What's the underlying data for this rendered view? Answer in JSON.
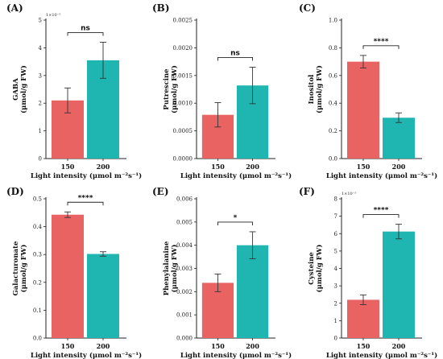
{
  "chart_data": [
    {
      "type": "bar",
      "panel": "(A)",
      "ylabel_top": "GABA",
      "ylabel_bottom": "(μmol/g FW)",
      "xlabel": "Light intensity (μmol m⁻²s⁻¹)",
      "categories": [
        "150",
        "200"
      ],
      "values": [
        2.1,
        3.55
      ],
      "errors": [
        0.45,
        0.65
      ],
      "ylim": [
        0,
        5
      ],
      "yticks": [
        "0",
        "1",
        "2",
        "3",
        "4",
        "5"
      ],
      "multiplier": "1×10⁻⁵",
      "significance": "ns"
    },
    {
      "type": "bar",
      "panel": "(B)",
      "ylabel_top": "Putrescine",
      "ylabel_bottom": "(μmol/g FW)",
      "xlabel": "Light intensity (μmol m⁻²s⁻¹)",
      "categories": [
        "150",
        "200"
      ],
      "values": [
        0.00079,
        0.00132
      ],
      "errors": [
        0.00022,
        0.00033
      ],
      "ylim": [
        0,
        0.0025
      ],
      "yticks": [
        "0.0000",
        "0.0005",
        "0.0010",
        "0.0015",
        "0.0020",
        "0.0025"
      ],
      "multiplier": "",
      "significance": "ns"
    },
    {
      "type": "bar",
      "panel": "(C)",
      "ylabel_top": "Inositol",
      "ylabel_bottom": "(μmol/g FW)",
      "xlabel": "Light intensity (μmol m⁻²s⁻¹)",
      "categories": [
        "150",
        "200"
      ],
      "values": [
        0.7,
        0.295
      ],
      "errors": [
        0.045,
        0.035
      ],
      "ylim": [
        0,
        1.0
      ],
      "yticks": [
        "0.0",
        "0.2",
        "0.4",
        "0.6",
        "0.8",
        "1.0"
      ],
      "multiplier": "",
      "significance": "****"
    },
    {
      "type": "bar",
      "panel": "(D)",
      "ylabel_top": "Galacturonate",
      "ylabel_bottom": "(μmol/g FW)",
      "xlabel": "Light intensity (μmol m⁻²s⁻¹)",
      "categories": [
        "150",
        "200"
      ],
      "values": [
        0.443,
        0.302
      ],
      "errors": [
        0.01,
        0.008
      ],
      "ylim": [
        0,
        0.5
      ],
      "yticks": [
        "0.0",
        "0.1",
        "0.2",
        "0.3",
        "0.4",
        "0.5"
      ],
      "multiplier": "",
      "significance": "****"
    },
    {
      "type": "bar",
      "panel": "(E)",
      "ylabel_top": "Phenylalanine",
      "ylabel_bottom": "(μmol/g FW)",
      "xlabel": "Light intensity (μmol m⁻²s⁻¹)",
      "categories": [
        "150",
        "200"
      ],
      "values": [
        0.00238,
        0.004
      ],
      "errors": [
        0.00038,
        0.00058
      ],
      "ylim": [
        0,
        0.006
      ],
      "yticks": [
        "0.000",
        "0.001",
        "0.002",
        "0.003",
        "0.004",
        "0.005",
        "0.006"
      ],
      "multiplier": "",
      "significance": "*"
    },
    {
      "type": "bar",
      "panel": "(F)",
      "ylabel_top": "Cysteine",
      "ylabel_bottom": "(μmol/g FW)",
      "xlabel": "Light intensity (μmol m⁻²s⁻¹)",
      "categories": [
        "150",
        "200"
      ],
      "values": [
        2.2,
        6.12
      ],
      "errors": [
        0.28,
        0.42
      ],
      "ylim": [
        0,
        8
      ],
      "yticks": [
        "0",
        "1",
        "2",
        "3",
        "4",
        "5",
        "6",
        "7",
        "8"
      ],
      "multiplier": "1×10⁻⁵",
      "significance": "****"
    }
  ],
  "colors": {
    "bar_150": "#EA6363",
    "bar_200": "#1FB5B0",
    "axis": "#222222"
  }
}
